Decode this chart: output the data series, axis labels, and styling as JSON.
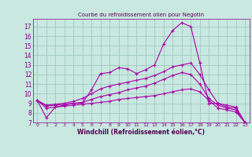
{
  "title": "Courbe du refroidissement olien pour Negotin",
  "xlabel": "Windchill (Refroidissement éolien,°C)",
  "bg_color": "#c8e8e0",
  "grid_color": "#a0c8c0",
  "line_color": "#aa00aa",
  "xlim": [
    -0.5,
    23.5
  ],
  "ylim": [
    7,
    17.8
  ],
  "xticks": [
    0,
    1,
    2,
    3,
    4,
    5,
    6,
    7,
    8,
    9,
    10,
    11,
    12,
    13,
    14,
    15,
    16,
    17,
    18,
    19,
    20,
    21,
    22,
    23
  ],
  "yticks": [
    7,
    8,
    9,
    10,
    11,
    12,
    13,
    14,
    15,
    16,
    17
  ],
  "series": [
    [
      9.3,
      7.5,
      8.6,
      8.8,
      9.0,
      9.0,
      10.4,
      12.1,
      12.2,
      12.7,
      12.6,
      12.1,
      12.5,
      13.0,
      15.2,
      16.6,
      17.4,
      17.0,
      13.2,
      9.0,
      9.0,
      8.6,
      8.5,
      7.0
    ],
    [
      9.3,
      8.8,
      8.9,
      9.0,
      9.2,
      9.5,
      10.0,
      10.5,
      10.8,
      11.0,
      11.2,
      11.4,
      11.6,
      11.9,
      12.3,
      12.8,
      13.0,
      13.2,
      12.0,
      10.4,
      9.0,
      8.8,
      8.6,
      7.0
    ],
    [
      9.3,
      8.7,
      8.8,
      8.9,
      9.0,
      9.1,
      9.4,
      9.7,
      9.9,
      10.1,
      10.4,
      10.6,
      10.8,
      11.1,
      11.5,
      11.9,
      12.2,
      12.0,
      11.0,
      9.5,
      8.8,
      8.5,
      8.3,
      7.0
    ],
    [
      9.3,
      8.5,
      8.6,
      8.7,
      8.8,
      8.9,
      9.0,
      9.1,
      9.2,
      9.4,
      9.5,
      9.6,
      9.7,
      9.8,
      10.0,
      10.2,
      10.4,
      10.5,
      10.2,
      9.3,
      8.5,
      8.3,
      8.1,
      7.0
    ]
  ]
}
